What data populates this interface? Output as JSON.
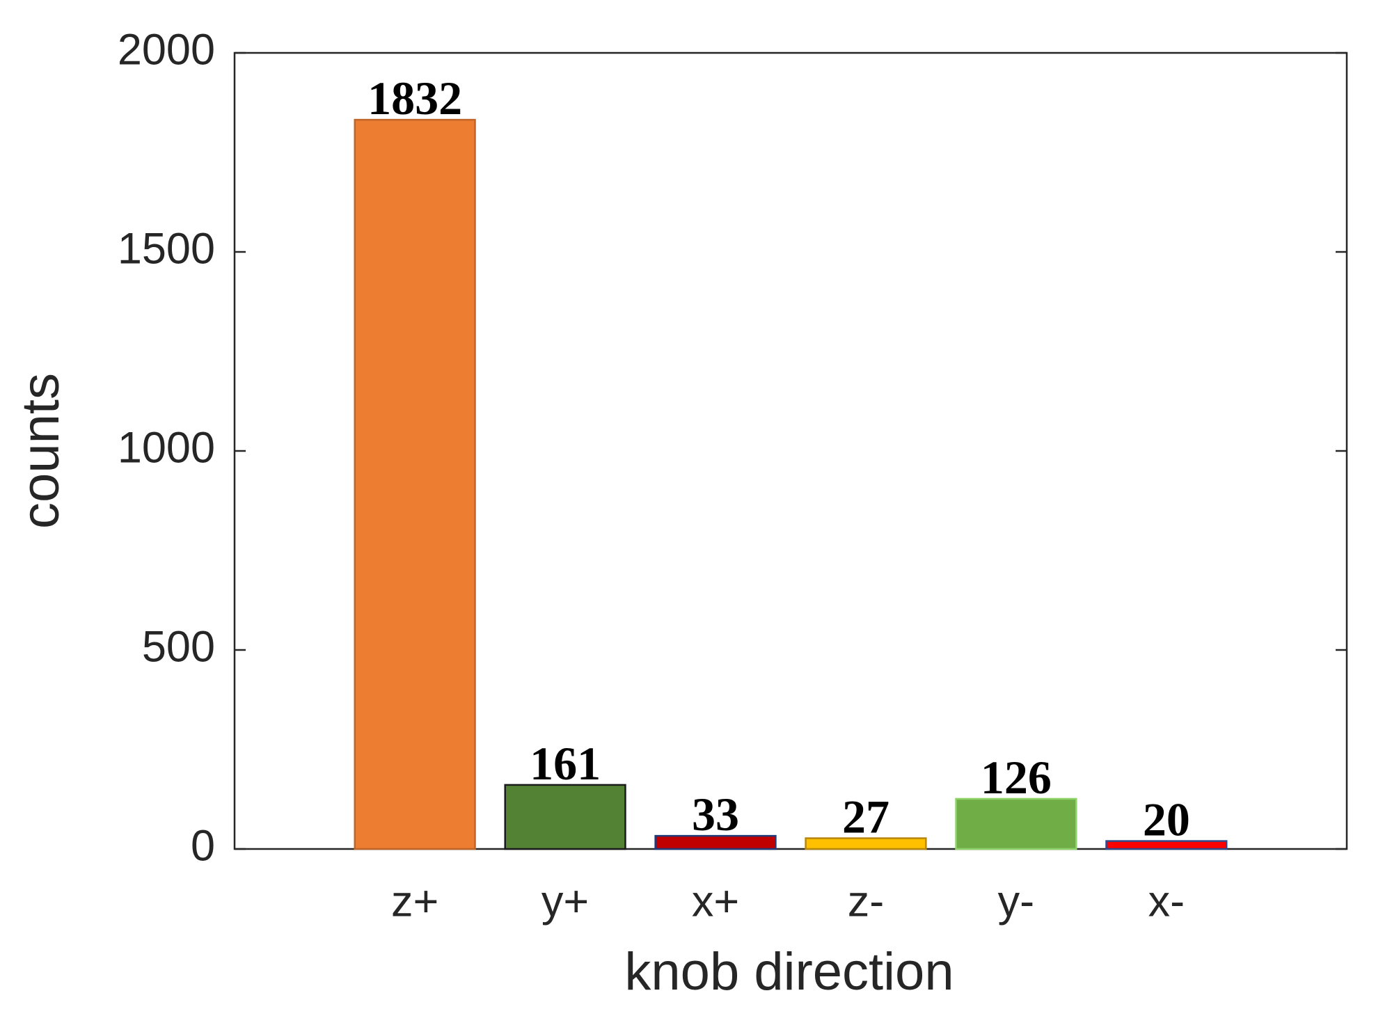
{
  "chart_data": {
    "type": "bar",
    "xlabel": "knob direction",
    "ylabel": "counts",
    "categories": [
      "z+",
      "y+",
      "x+",
      "z-",
      "y-",
      "x-"
    ],
    "values": [
      1832,
      161,
      33,
      27,
      126,
      20
    ],
    "colors": [
      "#ED7D31",
      "#548235",
      "#C00000",
      "#FFC000",
      "#70AD47",
      "#FF0000"
    ],
    "edge_colors": [
      "#C0652A",
      "#1a1a1a",
      "#1F3B7A",
      "#B8860B",
      "#8FD36A",
      "#2E4A8C"
    ],
    "ylim": [
      0,
      2000
    ],
    "yticks": [
      0,
      500,
      1000,
      1500,
      2000
    ],
    "grid": false
  }
}
